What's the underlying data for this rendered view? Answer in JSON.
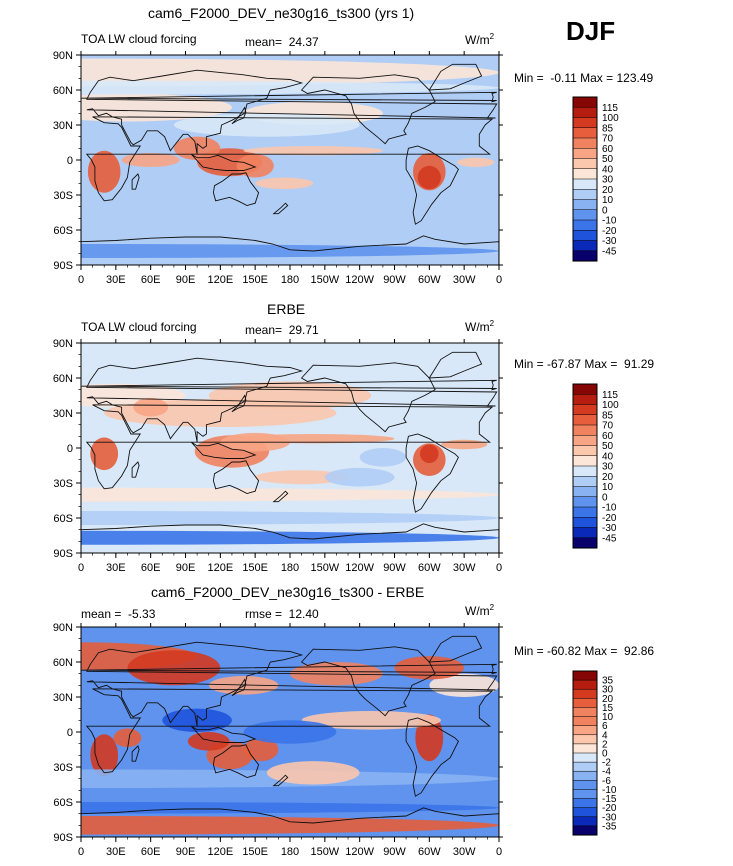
{
  "season": "DJF",
  "lon_labels": [
    "0",
    "30E",
    "60E",
    "90E",
    "120E",
    "150E",
    "180",
    "150W",
    "120W",
    "90W",
    "60W",
    "30W",
    "0"
  ],
  "lat_labels": [
    "90N",
    "60N",
    "30N",
    "0",
    "30S",
    "60S",
    "90S"
  ],
  "colors": {
    "abs": [
      "#08006b",
      "#0b29b8",
      "#1f53db",
      "#3a74e8",
      "#5f93ee",
      "#88b2f2",
      "#b0cdf5",
      "#d8e8f8",
      "#fce6d8",
      "#fbc7ad",
      "#f7a585",
      "#f1825f",
      "#e65e3b",
      "#d33a20",
      "#b41d10",
      "#860606"
    ],
    "diff": [
      "#08006b",
      "#0b29b8",
      "#1f53db",
      "#3a74e8",
      "#5f93ee",
      "#88b2f2",
      "#b0cdf5",
      "#d8e8f8",
      "#fce6d8",
      "#fbc7ad",
      "#f7a585",
      "#f1825f",
      "#e65e3b",
      "#d33a20",
      "#b41d10",
      "#860606"
    ],
    "land": "#111111"
  },
  "panels": [
    {
      "title": "cam6_F2000_DEV_ne30g16_ts300 (yrs 1)",
      "left_label": "TOA LW cloud forcing",
      "mean_label": "mean=  24.37",
      "units": "W/m",
      "units_sup": "2",
      "minmax": "Min =  -0.11 Max = 123.49",
      "levels": [
        "115",
        "100",
        "85",
        "70",
        "60",
        "50",
        "40",
        "30",
        "20",
        "10",
        "0",
        "-10",
        "-20",
        "-30",
        "-45"
      ]
    },
    {
      "title": "ERBE",
      "left_label": "TOA LW cloud forcing",
      "mean_label": "mean=  29.71",
      "units": "W/m",
      "units_sup": "2",
      "minmax": "Min = -67.87 Max =  91.29",
      "levels": [
        "115",
        "100",
        "85",
        "70",
        "60",
        "50",
        "40",
        "30",
        "20",
        "10",
        "0",
        "-10",
        "-20",
        "-30",
        "-45"
      ]
    },
    {
      "title": "cam6_F2000_DEV_ne30g16_ts300 - ERBE",
      "left_label": "mean =  -5.33",
      "mean_label": "rmse =  12.40",
      "units": "W/m",
      "units_sup": "2",
      "minmax": "Min = -60.82 Max =  92.86",
      "levels": [
        "35",
        "30",
        "20",
        "15",
        "10",
        "6",
        "4",
        "2",
        "0",
        "-2",
        "-4",
        "-6",
        "-10",
        "-15",
        "-20",
        "-30",
        "-35"
      ]
    }
  ]
}
